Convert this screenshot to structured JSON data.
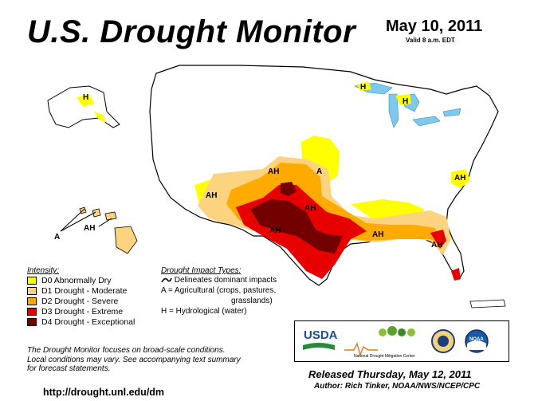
{
  "header": {
    "title": "U.S. Drought Monitor",
    "date": "May 10, 2011",
    "valid": "Valid 8 a.m. EDT"
  },
  "colors": {
    "water": "#7ec8ec",
    "land": "#ffffff",
    "D0": "#ffff00",
    "D1": "#fcd37f",
    "D2": "#ffaa00",
    "D3": "#e60000",
    "D4": "#730000"
  },
  "legend": {
    "intensity_title": "Intensity:",
    "items": [
      {
        "code": "D0",
        "label": "D0 Abnormally Dry",
        "color": "#ffff00"
      },
      {
        "code": "D1",
        "label": "D1 Drought - Moderate",
        "color": "#fcd37f"
      },
      {
        "code": "D2",
        "label": "D2 Drought - Severe",
        "color": "#ffaa00"
      },
      {
        "code": "D3",
        "label": "D3 Drought - Extreme",
        "color": "#e60000"
      },
      {
        "code": "D4",
        "label": "D4 Drought - Exceptional",
        "color": "#730000"
      }
    ]
  },
  "impacts": {
    "title": "Drought Impact Types:",
    "delineates": "Delineates dominant impacts",
    "agri_line1": "A = Agricultural (crops, pastures,",
    "agri_line2": "grasslands)",
    "hydro": "H = Hydrological (water)"
  },
  "map_labels": {
    "ah": "AH",
    "a": "A",
    "h": "H"
  },
  "footer": {
    "note_line1": "The Drought Monitor focuses on broad-scale conditions.",
    "note_line2": "Local conditions may vary. See accompanying text summary",
    "note_line3": "for forecast statements.",
    "url": "http://drought.unl.edu/dm",
    "released": "Released Thursday, May 12, 2011",
    "author": "Author: Rich Tinker, NOAA/NWS/NCEP/CPC"
  },
  "logos": {
    "usda": "USDA",
    "ndmc": "National Drought Mitigation Center",
    "noaa": "NOAA"
  }
}
